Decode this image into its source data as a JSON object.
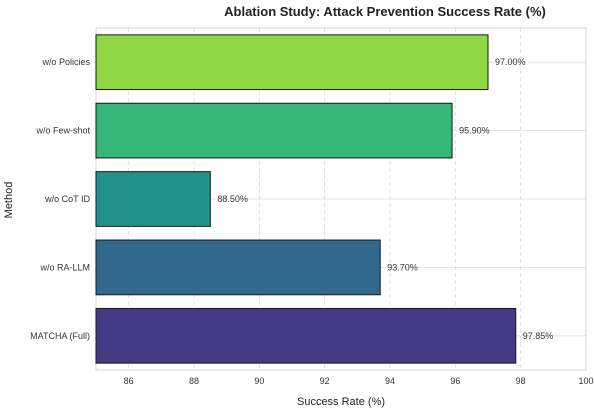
{
  "chart_data": {
    "type": "bar",
    "orientation": "horizontal",
    "title": "Ablation Study: Attack Prevention Success Rate (%)",
    "xlabel": "Success Rate (%)",
    "ylabel": "Method",
    "xlim": [
      85,
      100
    ],
    "xticks": [
      "86",
      "88",
      "90",
      "92",
      "94",
      "96",
      "98",
      "100"
    ],
    "categories": [
      "w/o Policies",
      "w/o Few-shot",
      "w/o CoT ID",
      "w/o RA-LLM",
      "MATCHA (Full)"
    ],
    "values": [
      97.0,
      95.9,
      88.5,
      93.7,
      97.85
    ],
    "value_labels": [
      "97.00%",
      "95.90%",
      "88.50%",
      "93.70%",
      "97.85%"
    ],
    "colors": [
      "#90d743",
      "#35b779",
      "#21918c",
      "#31688e",
      "#443983"
    ],
    "grid": true
  }
}
